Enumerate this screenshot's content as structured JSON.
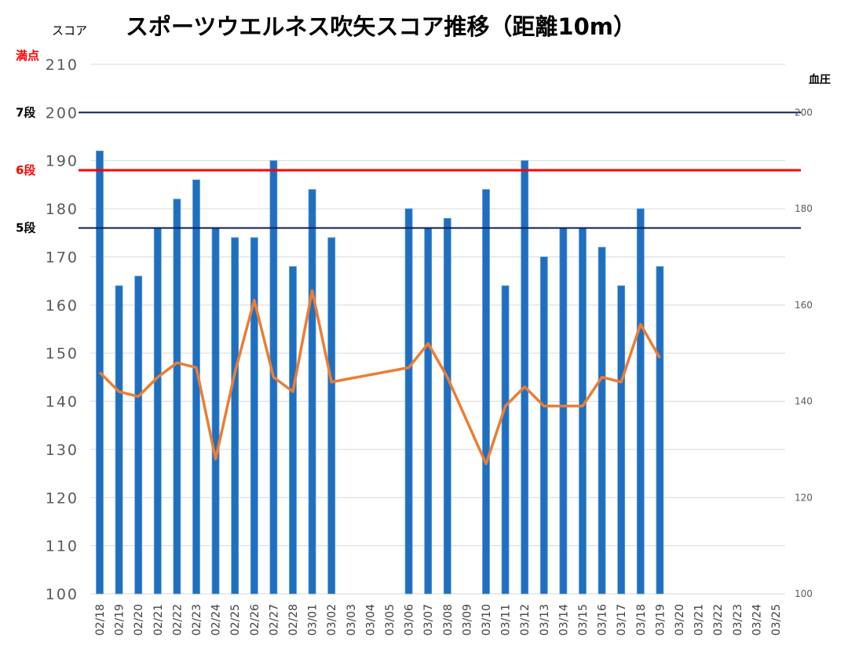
{
  "chart_data": {
    "type": "bar",
    "title": "スポーツウエルネス吹矢スコア推移（距離10m）",
    "ylabel": "スコア",
    "y2label": "血圧",
    "ylim": [
      100,
      210
    ],
    "y2lim": [
      100,
      210
    ],
    "yticks": [
      "100",
      "110",
      "120",
      "130",
      "140",
      "150",
      "160",
      "170",
      "180",
      "190",
      "200",
      "210"
    ],
    "y2ticks": [
      "100",
      "120",
      "140",
      "160",
      "180",
      "200"
    ],
    "grid": true,
    "categories": [
      "02/18",
      "02/19",
      "02/20",
      "02/21",
      "02/22",
      "02/23",
      "02/24",
      "02/25",
      "02/26",
      "02/27",
      "02/28",
      "03/01",
      "03/02",
      "03/03",
      "03/04",
      "03/05",
      "03/06",
      "03/07",
      "03/08",
      "03/09",
      "03/10",
      "03/11",
      "03/12",
      "03/13",
      "03/14",
      "03/15",
      "03/16",
      "03/17",
      "03/18",
      "03/19",
      "03/20",
      "03/21",
      "03/22",
      "03/23",
      "03/24",
      "03/25"
    ],
    "series": [
      {
        "type": "bar",
        "axis": "left",
        "color": "#1f6fc0",
        "values": [
          192,
          164,
          166,
          176,
          182,
          186,
          176,
          174,
          174,
          190,
          168,
          184,
          174,
          null,
          null,
          null,
          180,
          176,
          178,
          null,
          184,
          164,
          190,
          170,
          176,
          176,
          172,
          164,
          180,
          168,
          null,
          null,
          null,
          null,
          null,
          null
        ]
      },
      {
        "type": "line",
        "axis": "right",
        "color": "#ed7d31",
        "values": [
          146,
          142,
          141,
          145,
          148,
          147,
          128,
          146,
          161,
          145,
          142,
          163,
          144,
          null,
          null,
          null,
          147,
          152,
          145,
          null,
          127,
          139,
          143,
          139,
          139,
          139,
          145,
          144,
          156,
          149,
          null,
          null,
          null,
          null,
          null,
          null
        ]
      }
    ],
    "reference_lines": [
      {
        "label": "満点",
        "value": 210,
        "color": "#ff0000",
        "line": false
      },
      {
        "label": "7段",
        "value": 200,
        "color": "#000000",
        "line_color": "#0f1d5a",
        "line": true
      },
      {
        "label": "6段",
        "value": 188,
        "color": "#ff0000",
        "line_color": "#ff0000",
        "line": true
      },
      {
        "label": "5段",
        "value": 176,
        "color": "#000000",
        "line_color": "#0f1d5a",
        "line": true
      }
    ]
  }
}
